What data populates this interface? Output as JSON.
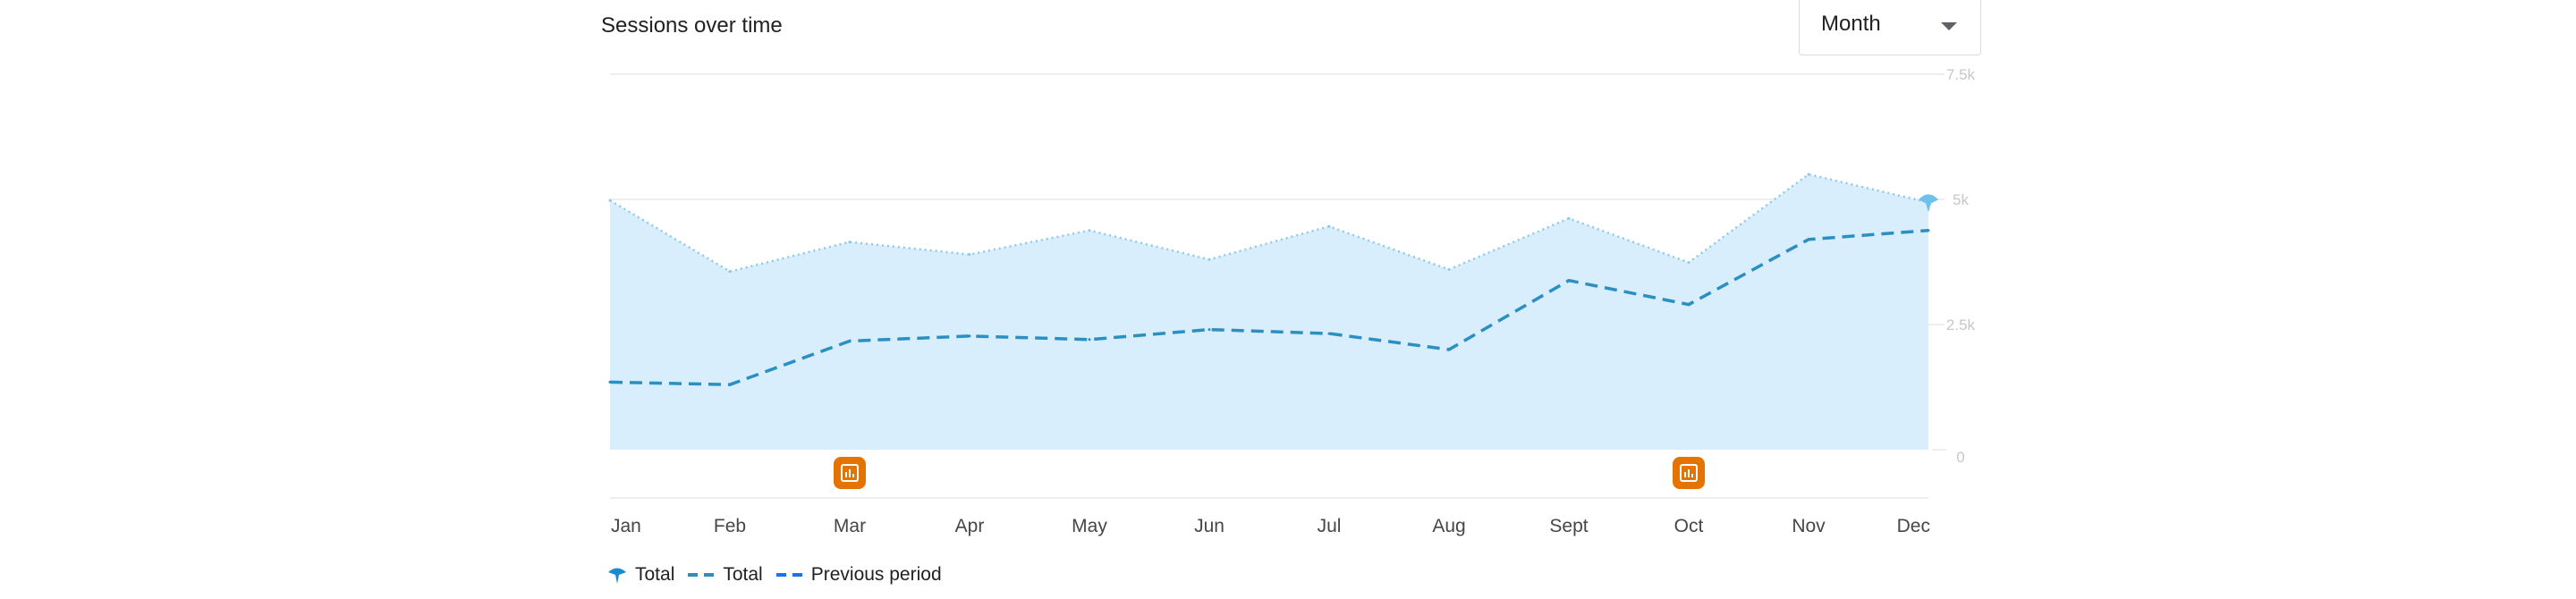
{
  "card": {
    "title": "Sessions over time"
  },
  "period_select": {
    "value": "Month"
  },
  "colors": {
    "area_fill": "#d8eefc",
    "area_stroke": "#8ec9ea",
    "dashed_line": "#2b8fc2",
    "annotation": "#e37400",
    "legend_previous": "#1a73e8",
    "grid": "#e8e8e8"
  },
  "chart_data": {
    "type": "area",
    "categories": [
      "Jan",
      "Feb",
      "Mar",
      "Apr",
      "May",
      "Jun",
      "Jul",
      "Aug",
      "Sept",
      "Oct",
      "Nov",
      "Dec"
    ],
    "ytick_labels": [
      "0",
      "2.5k",
      "5k",
      "7.5k"
    ],
    "ylim": [
      0,
      7500
    ],
    "grid": true,
    "series": [
      {
        "name": "Total",
        "style": "area-dotted",
        "values": [
          4980,
          3560,
          4150,
          3900,
          4380,
          3800,
          4460,
          3600,
          4620,
          3740,
          5500,
          4940
        ]
      },
      {
        "name": "Total",
        "style": "dashed",
        "values": [
          1350,
          1300,
          2170,
          2270,
          2200,
          2400,
          2320,
          2000,
          3380,
          2900,
          4200,
          4380
        ]
      }
    ],
    "annotations": [
      {
        "x": "Mar",
        "icon": "annotation-icon"
      },
      {
        "x": "Oct",
        "icon": "annotation-icon"
      }
    ],
    "legend": [
      {
        "label": "Total",
        "marker": "pin-icon"
      },
      {
        "label": "Total",
        "marker": "dash"
      },
      {
        "label": "Previous period",
        "marker": "dash"
      }
    ]
  }
}
